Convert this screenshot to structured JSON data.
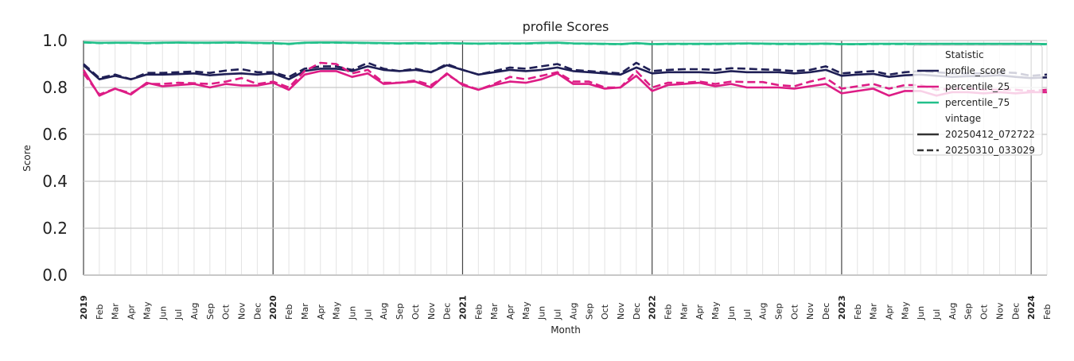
{
  "chart_data": {
    "type": "line",
    "title": "profile Scores",
    "xlabel": "Month",
    "ylabel": "Score",
    "ylim": [
      0.0,
      1.0
    ],
    "yticks": [
      "0.0",
      "0.2",
      "0.4",
      "0.6",
      "0.8",
      "1.0"
    ],
    "grid": true,
    "legend_placement": "top-right",
    "x_start": "2019-01",
    "x_end": "2024-02",
    "xtick_labels": [
      "2019",
      "Feb",
      "Mar",
      "Apr",
      "May",
      "Jun",
      "Jul",
      "Aug",
      "Sep",
      "Oct",
      "Nov",
      "Dec",
      "2020",
      "Feb",
      "Mar",
      "Apr",
      "May",
      "Jun",
      "Jul",
      "Aug",
      "Sep",
      "Oct",
      "Nov",
      "Dec",
      "2021",
      "Feb",
      "Mar",
      "Apr",
      "May",
      "Jun",
      "Jul",
      "Aug",
      "Sep",
      "Oct",
      "Nov",
      "Dec",
      "2022",
      "Feb",
      "Mar",
      "Apr",
      "May",
      "Jun",
      "Jul",
      "Aug",
      "Sep",
      "Oct",
      "Nov",
      "Dec",
      "2023",
      "Feb",
      "Mar",
      "Apr",
      "May",
      "Jun",
      "Jul",
      "Aug",
      "Sep",
      "Oct",
      "Nov",
      "Dec",
      "2024",
      "Feb"
    ],
    "legend": {
      "statistic_title": "Statistic",
      "vintage_title": "vintage",
      "statistics": [
        {
          "name": "profile_score",
          "color": "#1f1f55"
        },
        {
          "name": "percentile_25",
          "color": "#dd1c85"
        },
        {
          "name": "percentile_75",
          "color": "#22c08a"
        }
      ],
      "vintages": [
        {
          "name": "20250412_072722",
          "style": "solid"
        },
        {
          "name": "20250310_033029",
          "style": "dashed"
        }
      ]
    },
    "series": [
      {
        "statistic": "percentile_75",
        "vintage": "20250412_072722",
        "values": [
          0.993,
          0.99,
          0.991,
          0.991,
          0.989,
          0.991,
          0.992,
          0.991,
          0.991,
          0.992,
          0.992,
          0.99,
          0.989,
          0.986,
          0.991,
          0.992,
          0.992,
          0.991,
          0.99,
          0.989,
          0.988,
          0.989,
          0.988,
          0.989,
          0.988,
          0.987,
          0.988,
          0.988,
          0.988,
          0.99,
          0.991,
          0.988,
          0.987,
          0.986,
          0.985,
          0.989,
          0.985,
          0.986,
          0.986,
          0.986,
          0.986,
          0.987,
          0.988,
          0.987,
          0.986,
          0.986,
          0.986,
          0.987,
          0.985,
          0.985,
          0.986,
          0.986,
          0.986,
          0.986,
          0.986,
          0.986,
          0.986,
          0.986,
          0.986,
          0.986,
          0.986,
          0.985
        ]
      },
      {
        "statistic": "percentile_75",
        "vintage": "20250310_033029",
        "values": [
          0.992,
          0.989,
          0.99,
          0.99,
          0.988,
          0.99,
          0.991,
          0.99,
          0.99,
          0.991,
          0.991,
          0.989,
          0.988,
          0.985,
          0.99,
          0.991,
          0.991,
          0.99,
          0.989,
          0.988,
          0.987,
          0.988,
          0.987,
          0.988,
          0.987,
          0.986,
          0.987,
          0.987,
          0.987,
          0.989,
          0.99,
          0.987,
          0.986,
          0.985,
          0.984,
          0.988,
          0.984,
          0.985,
          0.985,
          0.985,
          0.985,
          0.986,
          0.987,
          0.986,
          0.985,
          0.985,
          0.985,
          0.986,
          0.984,
          0.984,
          0.985,
          0.985,
          0.985,
          0.985,
          0.985,
          0.985,
          0.985,
          0.985,
          0.985,
          0.985,
          0.985,
          0.984
        ]
      },
      {
        "statistic": "profile_score",
        "vintage": "20250412_072722",
        "values": [
          0.895,
          0.835,
          0.85,
          0.835,
          0.855,
          0.855,
          0.857,
          0.86,
          0.852,
          0.857,
          0.86,
          0.855,
          0.86,
          0.835,
          0.87,
          0.88,
          0.88,
          0.87,
          0.89,
          0.875,
          0.87,
          0.875,
          0.865,
          0.895,
          0.875,
          0.855,
          0.865,
          0.875,
          0.87,
          0.875,
          0.885,
          0.87,
          0.865,
          0.86,
          0.855,
          0.885,
          0.86,
          0.865,
          0.865,
          0.865,
          0.862,
          0.87,
          0.865,
          0.865,
          0.865,
          0.86,
          0.865,
          0.875,
          0.85,
          0.855,
          0.858,
          0.845,
          0.852,
          0.855,
          0.85,
          0.845,
          0.848,
          0.848,
          0.852,
          0.845,
          0.84,
          0.843
        ]
      },
      {
        "statistic": "profile_score",
        "vintage": "20250310_033029",
        "values": [
          0.9,
          0.84,
          0.855,
          0.835,
          0.862,
          0.862,
          0.865,
          0.868,
          0.862,
          0.872,
          0.878,
          0.865,
          0.865,
          0.845,
          0.88,
          0.89,
          0.89,
          0.875,
          0.905,
          0.88,
          0.87,
          0.88,
          0.865,
          0.9,
          0.875,
          0.855,
          0.87,
          0.885,
          0.88,
          0.89,
          0.9,
          0.875,
          0.87,
          0.865,
          0.86,
          0.905,
          0.87,
          0.875,
          0.878,
          0.878,
          0.875,
          0.882,
          0.88,
          0.877,
          0.875,
          0.87,
          0.875,
          0.89,
          0.86,
          0.865,
          0.87,
          0.855,
          0.865,
          0.87,
          0.865,
          0.86,
          0.86,
          0.86,
          0.865,
          0.862,
          0.85,
          0.855
        ]
      },
      {
        "statistic": "percentile_25",
        "vintage": "20250412_072722",
        "values": [
          0.875,
          0.765,
          0.795,
          0.77,
          0.82,
          0.805,
          0.81,
          0.815,
          0.8,
          0.815,
          0.808,
          0.808,
          0.82,
          0.79,
          0.855,
          0.87,
          0.87,
          0.845,
          0.86,
          0.815,
          0.82,
          0.825,
          0.8,
          0.86,
          0.81,
          0.79,
          0.81,
          0.825,
          0.82,
          0.835,
          0.86,
          0.815,
          0.815,
          0.795,
          0.8,
          0.85,
          0.785,
          0.81,
          0.815,
          0.82,
          0.805,
          0.815,
          0.8,
          0.8,
          0.8,
          0.795,
          0.805,
          0.815,
          0.775,
          0.785,
          0.795,
          0.765,
          0.785,
          0.785,
          0.765,
          0.78,
          0.78,
          0.775,
          0.78,
          0.775,
          0.78,
          0.78
        ]
      },
      {
        "statistic": "percentile_25",
        "vintage": "20250310_033029",
        "values": [
          0.86,
          0.77,
          0.795,
          0.775,
          0.815,
          0.815,
          0.82,
          0.818,
          0.815,
          0.825,
          0.84,
          0.815,
          0.825,
          0.8,
          0.87,
          0.905,
          0.9,
          0.86,
          0.875,
          0.82,
          0.82,
          0.83,
          0.81,
          0.855,
          0.815,
          0.79,
          0.815,
          0.845,
          0.835,
          0.85,
          0.865,
          0.825,
          0.825,
          0.8,
          0.8,
          0.87,
          0.8,
          0.82,
          0.82,
          0.825,
          0.815,
          0.825,
          0.823,
          0.823,
          0.81,
          0.805,
          0.825,
          0.84,
          0.795,
          0.805,
          0.815,
          0.795,
          0.81,
          0.81,
          0.79,
          0.795,
          0.795,
          0.79,
          0.79,
          0.79,
          0.785,
          0.79
        ]
      }
    ]
  }
}
